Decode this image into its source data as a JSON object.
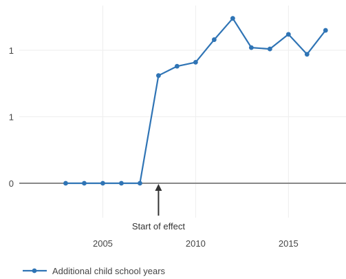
{
  "chart_data": {
    "type": "line",
    "title": "",
    "xlabel": "",
    "ylabel": "",
    "x": [
      2003,
      2004,
      2005,
      2006,
      2007,
      2008,
      2009,
      2010,
      2011,
      2012,
      2013,
      2014,
      2015,
      2016,
      2017
    ],
    "series": [
      {
        "name": "Additional child school years",
        "color": "#2f74b5",
        "values": [
          0,
          0,
          0,
          0,
          0,
          0.81,
          0.88,
          0.91,
          1.08,
          1.24,
          1.02,
          1.01,
          1.12,
          0.97,
          1.15
        ]
      }
    ],
    "xlim": [
      2000.5,
      2018.1
    ],
    "ylim": [
      -0.4,
      1.3
    ],
    "x_ticks": [
      {
        "value": 2005,
        "label": "2005"
      },
      {
        "value": 2010,
        "label": "2010"
      },
      {
        "value": 2015,
        "label": "2015"
      }
    ],
    "y_ticks": [
      {
        "value": 0,
        "label": "0"
      },
      {
        "value": 0.5,
        "label": "1"
      },
      {
        "value": 1,
        "label": "1"
      }
    ],
    "grid": true,
    "legend_position": "bottom-left",
    "annotation": {
      "text": "Start of effect",
      "x": 2008,
      "y": 0,
      "arrow_color": "#333333"
    },
    "colors": {
      "grid": "#eeeeee",
      "zero_line": "#888888",
      "tick_text": "#444444",
      "annotation_text": "#333333"
    }
  }
}
